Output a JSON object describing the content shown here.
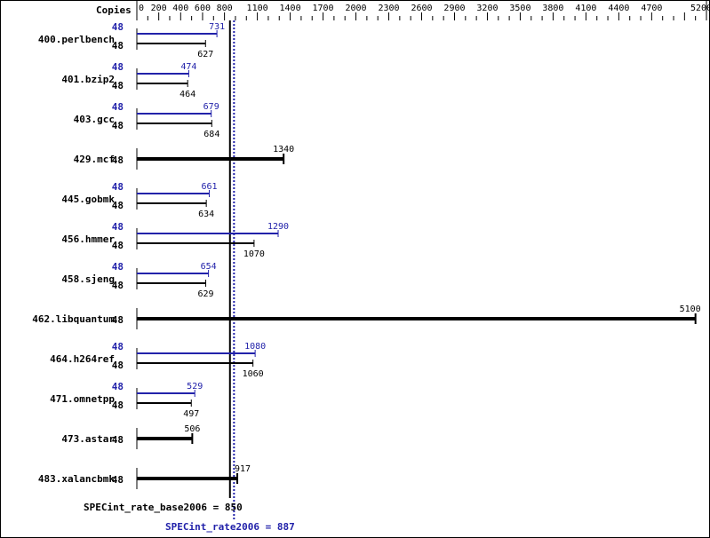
{
  "chart_data": {
    "type": "bar",
    "orientation": "horizontal",
    "xlabel": "Copies",
    "xlim": [
      0,
      5200
    ],
    "ticks": [
      0,
      200,
      400,
      600,
      800,
      1100,
      1400,
      1700,
      2000,
      2300,
      2600,
      2900,
      3200,
      3500,
      3800,
      4100,
      4400,
      4700,
      5200
    ],
    "colors": {
      "base": "#000000",
      "peak": "#2222aa"
    },
    "benchmarks": [
      {
        "name": "400.perlbench",
        "copies_peak": "48",
        "copies_base": "48",
        "peak": 731,
        "base": 627
      },
      {
        "name": "401.bzip2",
        "copies_peak": "48",
        "copies_base": "48",
        "peak": 474,
        "base": 464
      },
      {
        "name": "403.gcc",
        "copies_peak": "48",
        "copies_base": "48",
        "peak": 679,
        "base": 684
      },
      {
        "name": "429.mcf",
        "copies_base": "48",
        "base": 1340
      },
      {
        "name": "445.gobmk",
        "copies_peak": "48",
        "copies_base": "48",
        "peak": 661,
        "base": 634
      },
      {
        "name": "456.hmmer",
        "copies_peak": "48",
        "copies_base": "48",
        "peak": 1290,
        "base": 1070
      },
      {
        "name": "458.sjeng",
        "copies_peak": "48",
        "copies_base": "48",
        "peak": 654,
        "base": 629
      },
      {
        "name": "462.libquantum",
        "copies_base": "48",
        "base": 5100
      },
      {
        "name": "464.h264ref",
        "copies_peak": "48",
        "copies_base": "48",
        "peak": 1080,
        "base": 1060
      },
      {
        "name": "471.omnetpp",
        "copies_peak": "48",
        "copies_base": "48",
        "peak": 529,
        "base": 497
      },
      {
        "name": "473.astar",
        "copies_base": "48",
        "base": 506
      },
      {
        "name": "483.xalancbmk",
        "copies_base": "48",
        "base": 917
      }
    ],
    "base_metric": {
      "label": "SPECint_rate_base2006 = 850",
      "value": 850
    },
    "peak_metric": {
      "label": "SPECint_rate2006 = 887",
      "value": 887
    }
  }
}
